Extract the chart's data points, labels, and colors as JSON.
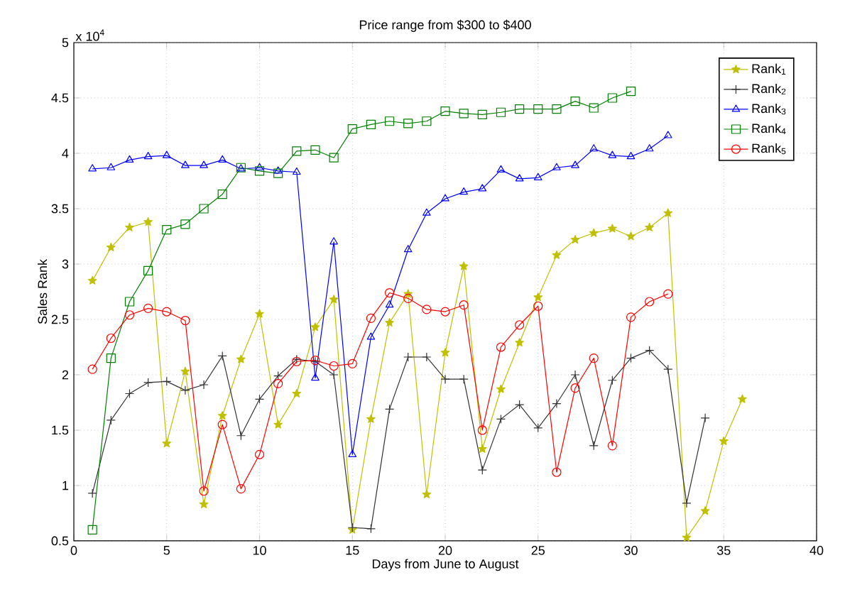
{
  "chart_data": {
    "type": "line",
    "title": "Price range from $300 to $400",
    "xlabel": "Days from June to August",
    "ylabel": "Sales Rank",
    "annotations": [
      "x 10$^{4}$"
    ],
    "x": [
      1,
      2,
      3,
      4,
      5,
      6,
      7,
      8,
      9,
      10,
      11,
      12,
      13,
      14,
      15,
      16,
      17,
      18,
      19,
      20,
      21,
      22,
      23,
      24,
      25,
      26,
      27,
      28,
      29,
      30,
      31,
      32,
      33,
      34,
      35,
      36
    ],
    "xlim": [
      0,
      40
    ],
    "xticks": [
      0,
      5,
      10,
      15,
      20,
      25,
      30,
      35,
      40
    ],
    "ylim": [
      0.5,
      5
    ],
    "yticks": [
      0.5,
      1,
      1.5,
      2,
      2.5,
      3,
      3.5,
      4,
      4.5,
      5
    ],
    "grid": true,
    "legend": "top right",
    "line_style": "solid",
    "series": [
      {
        "name": "Rank$_{1}$",
        "color": "#c0c000",
        "marker": "star",
        "values": [
          2.85,
          3.15,
          3.33,
          3.38,
          1.38,
          2.03,
          0.83,
          1.63,
          2.14,
          2.55,
          1.55,
          1.83,
          2.43,
          2.68,
          0.6,
          1.6,
          2.47,
          2.73,
          0.92,
          2.2,
          2.98,
          1.33,
          1.87,
          2.29,
          2.7,
          3.08,
          3.22,
          3.28,
          3.32,
          3.25,
          3.33,
          3.46,
          0.53,
          0.77,
          1.4,
          1.78
        ]
      },
      {
        "name": "Rank$_{2}$",
        "color": "#333333",
        "marker": "cross",
        "values": [
          0.93,
          1.59,
          1.83,
          1.93,
          1.94,
          1.86,
          1.91,
          2.17,
          1.45,
          1.78,
          1.99,
          2.14,
          2.12,
          2.0,
          0.62,
          0.61,
          1.69,
          2.16,
          2.16,
          1.96,
          1.96,
          1.14,
          1.6,
          1.73,
          1.52,
          1.74,
          2.0,
          1.36,
          1.95,
          2.15,
          2.22,
          2.05,
          0.84,
          1.61,
          null,
          null
        ]
      },
      {
        "name": "Rank$_{3}$",
        "color": "#0000ff",
        "marker": "triangle",
        "values": [
          3.86,
          3.87,
          3.94,
          3.97,
          3.98,
          3.89,
          3.89,
          3.94,
          3.86,
          3.87,
          3.84,
          3.83,
          1.97,
          3.2,
          1.28,
          2.34,
          2.63,
          3.13,
          3.46,
          3.59,
          3.65,
          3.68,
          3.85,
          3.77,
          3.78,
          3.87,
          3.89,
          4.04,
          3.98,
          3.97,
          4.04,
          4.16,
          null,
          null,
          null,
          null
        ]
      },
      {
        "name": "Rank$_{4}$",
        "color": "#008000",
        "marker": "square",
        "values": [
          0.6,
          2.15,
          2.66,
          2.94,
          3.31,
          3.36,
          3.5,
          3.63,
          3.87,
          3.84,
          3.82,
          4.02,
          4.03,
          3.96,
          4.22,
          4.26,
          4.29,
          4.27,
          4.29,
          4.38,
          4.36,
          4.35,
          4.37,
          4.4,
          4.4,
          4.4,
          4.47,
          4.41,
          4.5,
          4.56,
          null,
          null,
          null,
          null,
          null,
          null
        ]
      },
      {
        "name": "Rank$_{5}$",
        "color": "#ff0000",
        "marker": "circle",
        "values": [
          2.05,
          2.33,
          2.54,
          2.6,
          2.57,
          2.49,
          0.95,
          1.55,
          0.97,
          1.28,
          1.92,
          2.12,
          2.13,
          2.08,
          2.1,
          2.51,
          2.74,
          2.69,
          2.59,
          2.57,
          2.63,
          1.5,
          2.25,
          2.45,
          2.62,
          1.12,
          1.88,
          2.15,
          1.36,
          2.52,
          2.66,
          2.73,
          null,
          null,
          null,
          null
        ]
      }
    ]
  }
}
